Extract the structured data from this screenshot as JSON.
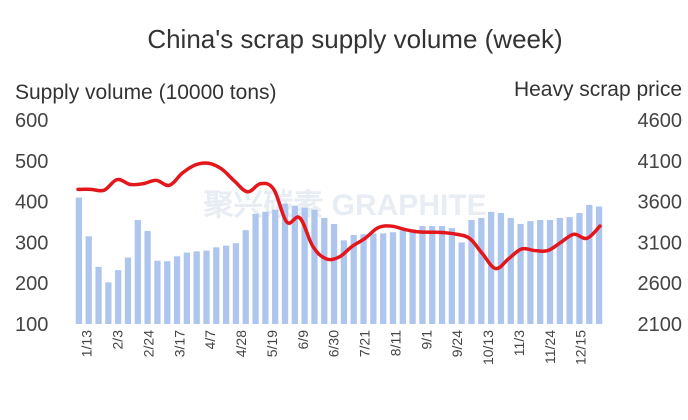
{
  "chart_data": {
    "type": "bar",
    "title": "China's scrap supply volume (week)",
    "y_left_label": "Supply volume (10000 tons)",
    "y_right_label": "Heavy scrap price",
    "y_left_range": [
      100,
      600
    ],
    "y_left_ticks": [
      "100",
      "200",
      "300",
      "400",
      "500",
      "600"
    ],
    "y_right_range": [
      2100,
      4600
    ],
    "y_right_ticks": [
      "2100",
      "2600",
      "3100",
      "3600",
      "4100",
      "4600"
    ],
    "x_tick_labels": [
      "1/13",
      "2/3",
      "2/24",
      "3/17",
      "4/7",
      "4/28",
      "5/19",
      "6/9",
      "6/30",
      "7/21",
      "8/11",
      "9/1",
      "9/24",
      "10/13",
      "11/3",
      "11/24",
      "12/15"
    ],
    "watermark": "聚兴碳素 GRAPHITE",
    "bar_color": "#aec6ee",
    "line_color": "#e3161c",
    "series": [
      {
        "type": "bar",
        "axis": "left",
        "values": [
          410,
          315,
          240,
          202,
          232,
          263,
          355,
          328,
          255,
          254,
          266,
          275,
          278,
          280,
          288,
          292,
          298,
          330,
          370,
          375,
          380,
          395,
          390,
          385,
          380,
          360,
          345,
          305,
          318,
          320,
          322,
          322,
          325,
          330,
          332,
          340,
          340,
          340,
          335,
          300,
          355,
          360,
          375,
          372,
          360,
          345,
          352,
          355,
          355,
          360,
          362,
          372,
          392,
          388
        ]
      },
      {
        "type": "line",
        "axis": "right",
        "values": [
          3750,
          3750,
          3740,
          3870,
          3810,
          3820,
          3860,
          3800,
          3950,
          4050,
          4070,
          4000,
          3850,
          3720,
          3820,
          3750,
          3350,
          3400,
          3050,
          2900,
          2920,
          3050,
          3150,
          3280,
          3300,
          3260,
          3230,
          3225,
          3220,
          3200,
          3150,
          2960,
          2780,
          2900,
          3020,
          3000,
          3000,
          3100,
          3200,
          3150,
          3300
        ]
      }
    ]
  }
}
